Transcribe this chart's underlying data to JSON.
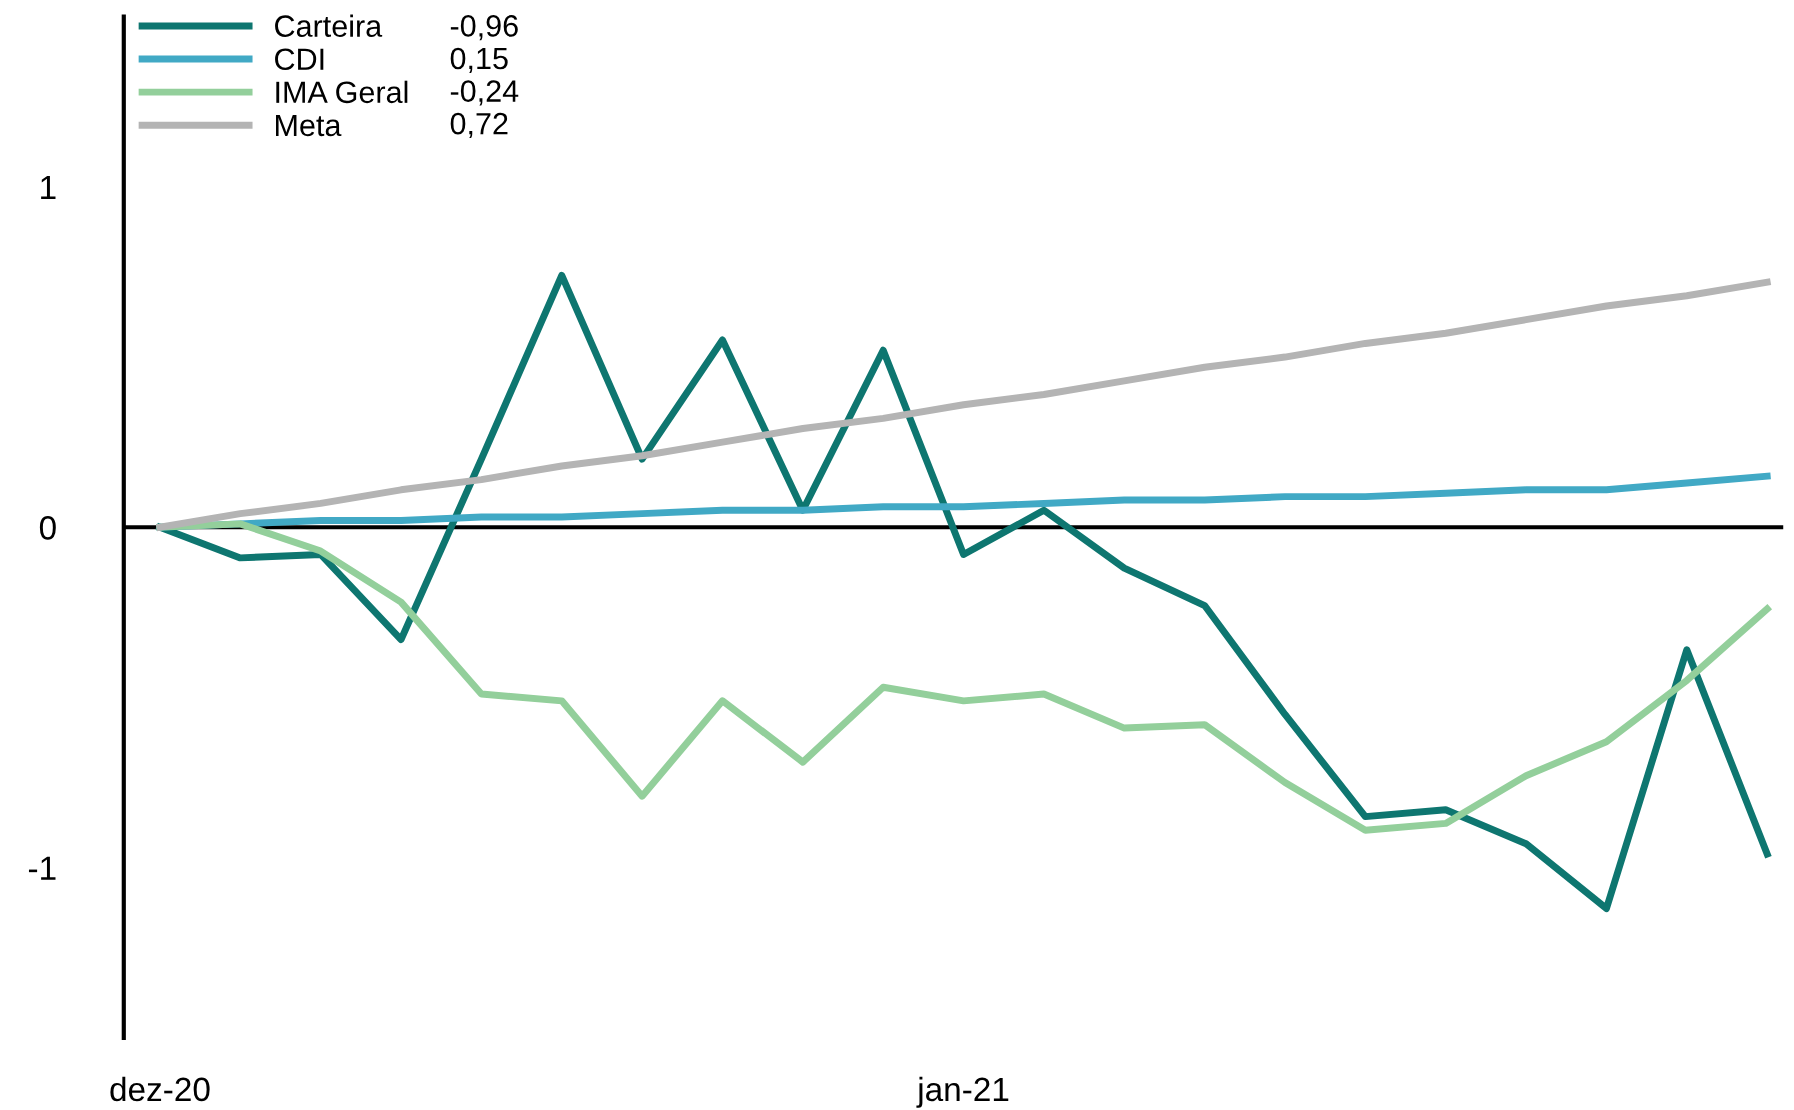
{
  "chart_data": {
    "type": "line",
    "categories": [
      "dez-20",
      null,
      null,
      null,
      null,
      null,
      null,
      null,
      null,
      null,
      "jan-21",
      null,
      null,
      null,
      null,
      null,
      null,
      null,
      null,
      null,
      null
    ],
    "series": [
      {
        "name": "Carteira",
        "color": "#0e7670",
        "values": [
          0,
          -0.09,
          -0.08,
          -0.33,
          0.2,
          0.74,
          0.2,
          0.55,
          0.05,
          0.52,
          -0.08,
          0.05,
          -0.12,
          -0.23,
          -0.55,
          -0.85,
          -0.83,
          -0.93,
          -1.12,
          -0.36,
          -0.96
        ]
      },
      {
        "name": "CDI",
        "color": "#41a9c5",
        "values": [
          0,
          0.01,
          0.02,
          0.02,
          0.03,
          0.03,
          0.04,
          0.05,
          0.05,
          0.06,
          0.06,
          0.07,
          0.08,
          0.08,
          0.09,
          0.09,
          0.1,
          0.11,
          0.11,
          0.13,
          0.15
        ]
      },
      {
        "name": "IMA Geral",
        "color": "#93cf9b",
        "values": [
          0,
          0.01,
          -0.07,
          -0.22,
          -0.49,
          -0.51,
          -0.79,
          -0.51,
          -0.69,
          -0.47,
          -0.51,
          -0.49,
          -0.59,
          -0.58,
          -0.75,
          -0.89,
          -0.87,
          -0.73,
          -0.63,
          -0.45,
          -0.24
        ]
      },
      {
        "name": "Meta",
        "color": "#b4b4b4",
        "values": [
          0,
          0.04,
          0.07,
          0.11,
          0.14,
          0.18,
          0.21,
          0.25,
          0.29,
          0.32,
          0.36,
          0.39,
          0.43,
          0.47,
          0.5,
          0.54,
          0.57,
          0.61,
          0.65,
          0.68,
          0.72
        ]
      }
    ],
    "annotations": [
      "-0,96",
      "0,15",
      "-0,24",
      "0,72"
    ],
    "ylim": [
      -1.5,
      1.5
    ],
    "yticks": [
      -1,
      0,
      1
    ],
    "ref_lines": [
      {
        "axis": "y",
        "value": 0,
        "color": "#000000"
      }
    ],
    "legend": "top left",
    "grid": false
  }
}
